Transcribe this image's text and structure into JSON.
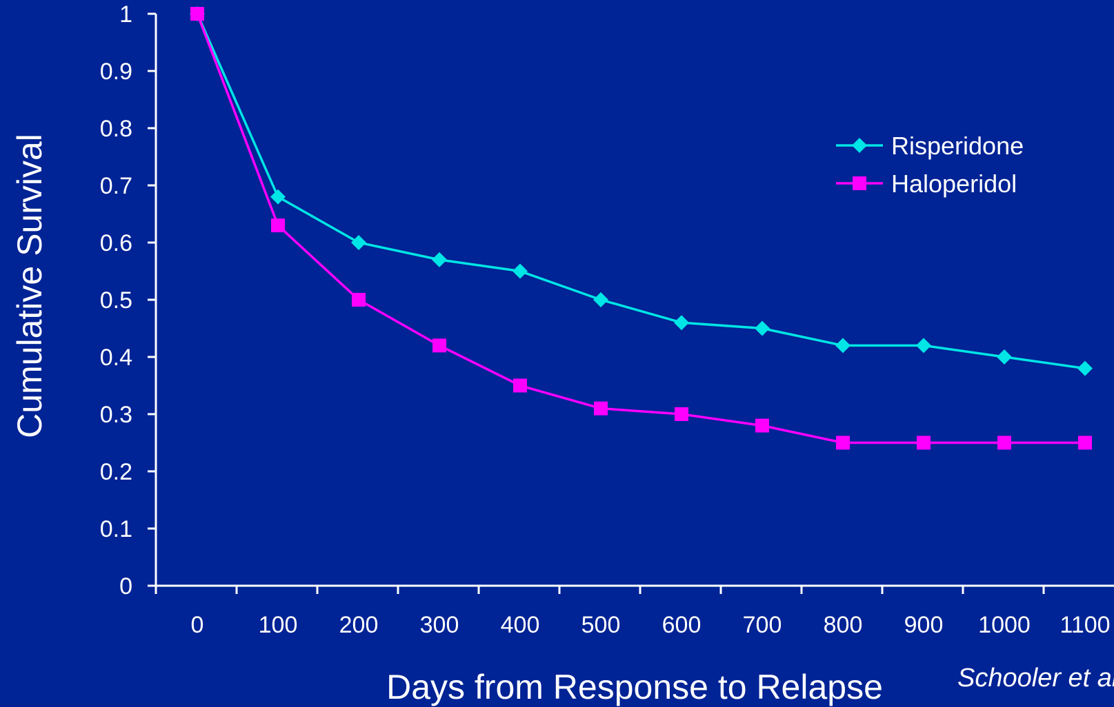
{
  "colors": {
    "background": "#002395",
    "axis": "#ffffff",
    "risperidone": "#00e5e5",
    "haloperidol": "#ff00ff"
  },
  "chart_data": {
    "type": "line",
    "title": "",
    "xlabel": "Days from Response to Relapse",
    "ylabel": "Cumulative Survival",
    "categories": [
      "0",
      "100",
      "200",
      "300",
      "400",
      "500",
      "600",
      "700",
      "800",
      "900",
      "1000",
      "1100"
    ],
    "y_ticks": [
      "0",
      "0.1",
      "0.2",
      "0.3",
      "0.4",
      "0.5",
      "0.6",
      "0.7",
      "0.8",
      "0.9",
      "1"
    ],
    "ylim": [
      0,
      1
    ],
    "grid": false,
    "legend_position": "top-right",
    "series": [
      {
        "name": "Risperidone",
        "marker": "diamond",
        "color": "#00e5e5",
        "values": [
          1.0,
          0.68,
          0.6,
          0.57,
          0.55,
          0.5,
          0.46,
          0.45,
          0.42,
          0.42,
          0.4,
          0.38
        ]
      },
      {
        "name": "Haloperidol",
        "marker": "square",
        "color": "#ff00ff",
        "values": [
          1.0,
          0.63,
          0.5,
          0.42,
          0.35,
          0.31,
          0.3,
          0.28,
          0.25,
          0.25,
          0.25,
          0.25
        ]
      }
    ],
    "annotation": "Schooler et al"
  }
}
